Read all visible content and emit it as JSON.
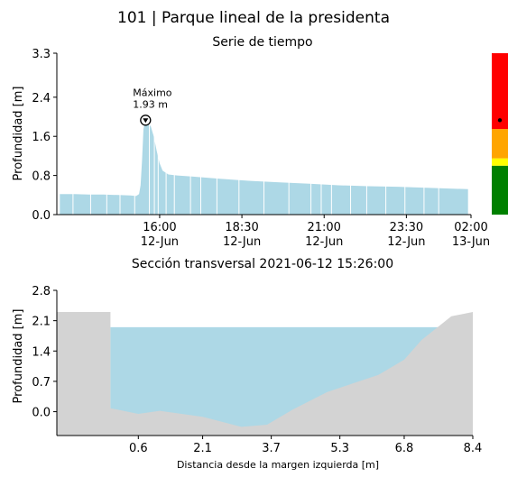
{
  "figure": {
    "title": "101 | Parque lineal de la presidenta"
  },
  "chart_data": [
    {
      "type": "area",
      "title": "Serie de tiempo",
      "ylabel": "Profundidad [m]",
      "xlabel": "",
      "ylim": [
        0.0,
        3.3
      ],
      "y_ticks": [
        "0.0",
        "0.8",
        "1.6",
        "2.4",
        "3.3"
      ],
      "y_tick_values": [
        0.0,
        0.8,
        1.6,
        2.4,
        3.3
      ],
      "x_range_hours": [
        12.4,
        26.5
      ],
      "x_ticks": [
        {
          "line1": "16:00",
          "line2": "12-Jun",
          "hour": 15.9
        },
        {
          "line1": "18:30",
          "line2": "12-Jun",
          "hour": 18.7
        },
        {
          "line1": "21:00",
          "line2": "12-Jun",
          "hour": 21.5
        },
        {
          "line1": "23:30",
          "line2": "12-Jun",
          "hour": 24.3
        },
        {
          "line1": "02:00",
          "line2": "13-Jun",
          "hour": 27.1
        }
      ],
      "fill_color": "#add8e6",
      "grid": false,
      "series": [
        {
          "values": [
            [
              12.5,
              0.42
            ],
            [
              13.0,
              0.42
            ],
            [
              13.5,
              0.41
            ],
            [
              14.0,
              0.41
            ],
            [
              14.5,
              0.4
            ],
            [
              14.9,
              0.39
            ],
            [
              15.1,
              0.38
            ],
            [
              15.2,
              0.42
            ],
            [
              15.25,
              0.6
            ],
            [
              15.3,
              1.1
            ],
            [
              15.35,
              1.75
            ],
            [
              15.42,
              1.93
            ],
            [
              15.5,
              1.88
            ],
            [
              15.6,
              1.8
            ],
            [
              15.7,
              1.6
            ],
            [
              15.8,
              1.3
            ],
            [
              15.9,
              1.05
            ],
            [
              16.0,
              0.9
            ],
            [
              16.2,
              0.82
            ],
            [
              16.5,
              0.8
            ],
            [
              17.0,
              0.78
            ],
            [
              18.0,
              0.73
            ],
            [
              19.0,
              0.69
            ],
            [
              20.0,
              0.66
            ],
            [
              21.0,
              0.63
            ],
            [
              22.0,
              0.6
            ],
            [
              23.0,
              0.58
            ],
            [
              24.0,
              0.57
            ],
            [
              25.0,
              0.55
            ],
            [
              26.4,
              0.52
            ]
          ]
        }
      ],
      "annotation": {
        "label": "Máximo",
        "value_text": "1.93 m",
        "hour": 15.42,
        "value": 1.93
      },
      "alert_scale": {
        "bands": [
          {
            "color": "#008000",
            "from": 0.0,
            "to": 1.0
          },
          {
            "color": "#ffff00",
            "from": 1.0,
            "to": 1.15
          },
          {
            "color": "#ffa500",
            "from": 1.15,
            "to": 1.75
          },
          {
            "color": "#ff0000",
            "from": 1.75,
            "to": 3.3
          }
        ],
        "marker_value": 1.93
      }
    },
    {
      "type": "area",
      "title": "Sección transversal 2021-06-12 15:26:00",
      "ylabel": "Profundidad [m]",
      "xlabel": "Distancia desde la margen izquierda [m]",
      "xlim": [
        -1.3,
        8.4
      ],
      "ylim": [
        -0.55,
        2.8
      ],
      "x_ticks": [
        "0.6",
        "2.1",
        "3.7",
        "5.3",
        "6.8",
        "8.4"
      ],
      "x_tick_values": [
        0.6,
        2.1,
        3.7,
        5.3,
        6.8,
        8.4
      ],
      "y_ticks": [
        "0.0",
        "0.7",
        "1.4",
        "2.1",
        "2.8"
      ],
      "y_tick_values": [
        0.0,
        0.7,
        1.4,
        2.1,
        2.8
      ],
      "water_level": 1.95,
      "water_color": "#add8e6",
      "ground_color": "#d3d3d3",
      "grid": false,
      "profile": [
        [
          -1.3,
          2.3
        ],
        [
          -0.05,
          2.3
        ],
        [
          -0.05,
          0.08
        ],
        [
          0.6,
          -0.05
        ],
        [
          1.1,
          0.02
        ],
        [
          2.1,
          -0.12
        ],
        [
          3.0,
          -0.35
        ],
        [
          3.6,
          -0.3
        ],
        [
          4.2,
          0.05
        ],
        [
          5.0,
          0.45
        ],
        [
          5.6,
          0.65
        ],
        [
          6.2,
          0.85
        ],
        [
          6.8,
          1.2
        ],
        [
          7.2,
          1.65
        ],
        [
          7.9,
          2.2
        ],
        [
          8.4,
          2.3
        ]
      ]
    }
  ]
}
